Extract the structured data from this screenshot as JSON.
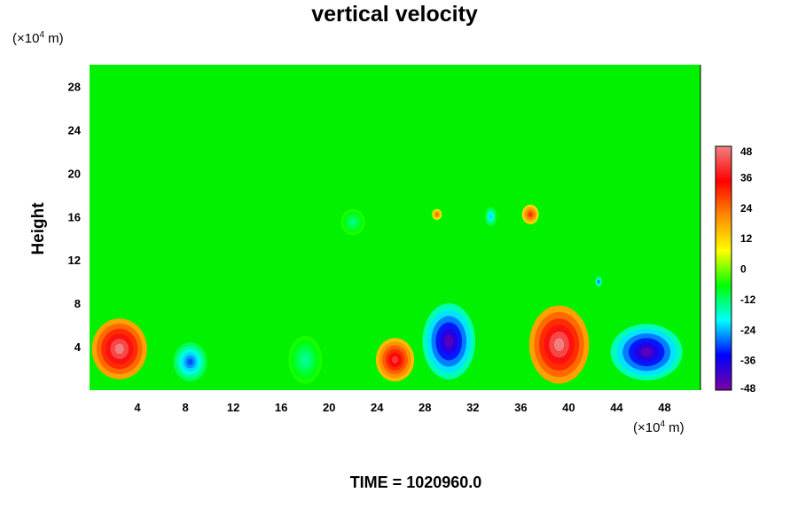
{
  "chart_data": {
    "type": "heatmap",
    "title": "vertical velocity",
    "xlabel": "",
    "ylabel": "Height",
    "x_unit_prefix": "(×10",
    "unit_exp": "4",
    "unit_suffix": " m)",
    "xlim": [
      0,
      51
    ],
    "ylim": [
      0,
      30
    ],
    "x_ticks": [
      4,
      8,
      12,
      16,
      20,
      24,
      28,
      32,
      36,
      40,
      44,
      48
    ],
    "y_ticks": [
      4,
      8,
      12,
      16,
      20,
      24,
      28
    ],
    "colorbar": {
      "range": [
        -48,
        48
      ],
      "ticks": [
        48,
        36,
        24,
        12,
        0,
        -12,
        -24,
        -36,
        -48
      ],
      "colors": [
        "#f08080",
        "#ff0000",
        "#ff8c00",
        "#ffff00",
        "#00ff00",
        "#00ffff",
        "#0000ff",
        "#7a00a0"
      ]
    },
    "features": [
      {
        "x": 2.5,
        "y": 3.8,
        "rx": 2.3,
        "ry": 2.8,
        "value": 48
      },
      {
        "x": 8.4,
        "y": 2.6,
        "rx": 1.4,
        "ry": 1.8,
        "value": -30
      },
      {
        "x": 18.0,
        "y": 2.8,
        "rx": 1.4,
        "ry": 2.2,
        "value": -15
      },
      {
        "x": 25.5,
        "y": 2.8,
        "rx": 1.6,
        "ry": 2.0,
        "value": 40
      },
      {
        "x": 30.0,
        "y": 4.5,
        "rx": 2.2,
        "ry": 3.5,
        "value": -44
      },
      {
        "x": 39.2,
        "y": 4.2,
        "rx": 2.5,
        "ry": 3.6,
        "value": 48
      },
      {
        "x": 46.5,
        "y": 3.5,
        "rx": 3.0,
        "ry": 2.6,
        "value": -44
      },
      {
        "x": 36.8,
        "y": 16.2,
        "rx": 0.7,
        "ry": 0.9,
        "value": 30
      },
      {
        "x": 29.0,
        "y": 16.2,
        "rx": 0.4,
        "ry": 0.5,
        "value": 25
      },
      {
        "x": 33.5,
        "y": 16.0,
        "rx": 0.5,
        "ry": 0.9,
        "value": -24
      },
      {
        "x": 22.0,
        "y": 15.5,
        "rx": 1.0,
        "ry": 1.2,
        "value": -14
      },
      {
        "x": 42.5,
        "y": 10.0,
        "rx": 0.3,
        "ry": 0.5,
        "value": -30
      }
    ],
    "grid": false
  },
  "footer": {
    "time_text": "TIME = 1020960.0"
  }
}
